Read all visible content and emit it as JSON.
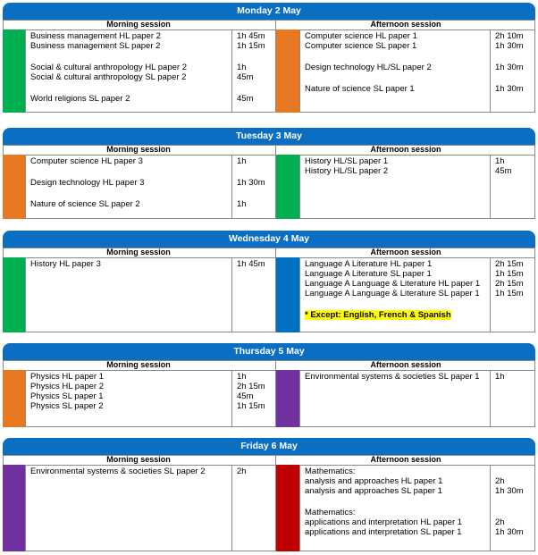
{
  "days": [
    {
      "title": "Monday 2 May",
      "sessions": [
        {
          "heading": "Morning session",
          "color": "#00b050",
          "groups": [
            [
              {
                "subject": "Business management HL paper 2",
                "duration": "1h 45m"
              },
              {
                "subject": "Business management SL paper 2",
                "duration": "1h 15m"
              }
            ],
            [
              {
                "subject": "Social & cultural anthropology HL paper 2",
                "duration": "1h"
              },
              {
                "subject": "Social & cultural anthropology SL paper 2",
                "duration": "45m"
              }
            ],
            [
              {
                "subject": "World religions SL paper 2",
                "duration": "45m"
              }
            ]
          ]
        },
        {
          "heading": "Afternoon session",
          "color": "#e87722",
          "groups": [
            [
              {
                "subject": "Computer science HL paper 1",
                "duration": "2h 10m"
              },
              {
                "subject": "Computer science SL paper 1",
                "duration": "1h 30m"
              }
            ],
            [
              {
                "subject": "Design technology HL/SL paper 2",
                "duration": "1h 30m"
              }
            ],
            [
              {
                "subject": "Nature of science SL paper 1",
                "duration": "1h 30m"
              }
            ]
          ]
        }
      ]
    },
    {
      "title": "Tuesday 3 May",
      "sessions": [
        {
          "heading": "Morning session",
          "color": "#e87722",
          "groups": [
            [
              {
                "subject": "Computer science HL paper 3",
                "duration": "1h"
              }
            ],
            [
              {
                "subject": "Design technology HL paper 3",
                "duration": "1h 30m"
              }
            ],
            [
              {
                "subject": "Nature of science SL paper 2",
                "duration": "1h"
              }
            ]
          ]
        },
        {
          "heading": "Afternoon session",
          "color": "#00b050",
          "groups": [
            [
              {
                "subject": "History HL/SL paper 1",
                "duration": "1h"
              },
              {
                "subject": "History HL/SL paper 2",
                "duration": "45m"
              }
            ]
          ]
        }
      ]
    },
    {
      "title": "Wednesday 4 May",
      "sessions": [
        {
          "heading": "Morning session",
          "color": "#00b050",
          "groups": [
            [
              {
                "subject": "History HL paper 3",
                "duration": "1h 45m"
              }
            ]
          ]
        },
        {
          "heading": "Afternoon session",
          "color": "#0070c0",
          "groups": [
            [
              {
                "subject": "Language A Literature HL paper 1",
                "duration": "2h 15m"
              },
              {
                "subject": "Language A Literature SL paper 1",
                "duration": "1h 15m"
              },
              {
                "subject": "Language A Language & Literature HL paper 1",
                "duration": "2h 15m"
              },
              {
                "subject": "Language A Language & Literature SL paper 1",
                "duration": "1h 15m"
              }
            ]
          ],
          "note": "* Except: English, French & Spanish"
        }
      ]
    },
    {
      "title": "Thursday 5 May",
      "sessions": [
        {
          "heading": "Morning session",
          "color": "#e87722",
          "groups": [
            [
              {
                "subject": "Physics HL paper 1",
                "duration": "1h"
              },
              {
                "subject": "Physics HL paper 2",
                "duration": "2h 15m"
              },
              {
                "subject": "Physics SL paper 1",
                "duration": "45m"
              },
              {
                "subject": "Physics SL paper 2",
                "duration": "1h 15m"
              }
            ]
          ]
        },
        {
          "heading": "Afternoon session",
          "color": "#7030a0",
          "groups": [
            [
              {
                "subject": "Environmental systems & societies SL paper 1",
                "duration": "1h"
              }
            ]
          ]
        }
      ]
    },
    {
      "title": "Friday 6 May",
      "sessions": [
        {
          "heading": "Morning session",
          "color": "#7030a0",
          "groups": [
            [
              {
                "subject": "Environmental systems & societies SL paper 2",
                "duration": "2h"
              }
            ]
          ]
        },
        {
          "heading": "Afternoon session",
          "color": "#c00000",
          "groups": [
            [
              {
                "subject": "Mathematics:"
              },
              {
                "subject": "analysis and approaches HL paper 1",
                "duration": "2h"
              },
              {
                "subject": "analysis and approaches SL paper 1",
                "duration": "1h 30m"
              }
            ],
            [
              {
                "subject": "Mathematics:"
              },
              {
                "subject": "applications and interpretation HL paper 1",
                "duration": "2h"
              },
              {
                "subject": "applications and interpretation SL paper 1",
                "duration": "1h 30m"
              }
            ]
          ]
        }
      ]
    }
  ]
}
